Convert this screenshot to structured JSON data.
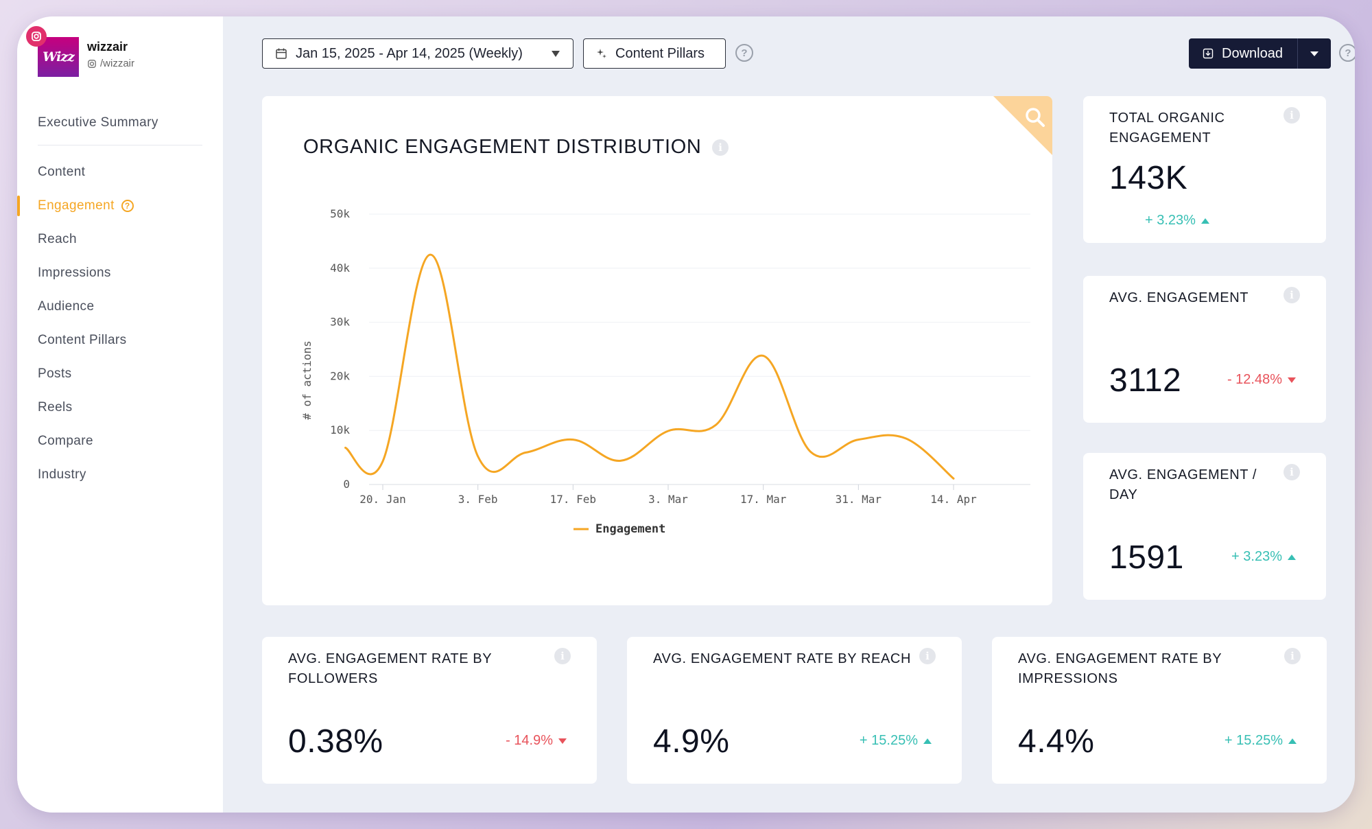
{
  "brand": {
    "logo_text": "Wizz",
    "name": "wizzair",
    "handle": "/wizzair"
  },
  "sidebar": {
    "summary": "Executive Summary",
    "items": [
      {
        "label": "Content",
        "active": false
      },
      {
        "label": "Engagement",
        "active": true
      },
      {
        "label": "Reach",
        "active": false
      },
      {
        "label": "Impressions",
        "active": false
      },
      {
        "label": "Audience",
        "active": false
      },
      {
        "label": "Content Pillars",
        "active": false
      },
      {
        "label": "Posts",
        "active": false
      },
      {
        "label": "Reels",
        "active": false
      },
      {
        "label": "Compare",
        "active": false
      },
      {
        "label": "Industry",
        "active": false
      }
    ]
  },
  "toolbar": {
    "date_range": "Jan 15, 2025 - Apr 14, 2025 (Weekly)",
    "pillars_label": "Content Pillars",
    "download_label": "Download"
  },
  "colors": {
    "accent": "#f5a623",
    "line": "#f5a623",
    "positive": "#37bfb4",
    "negative": "#e8535b",
    "dark": "#161b36"
  },
  "chart_data": {
    "type": "line",
    "title": "ORGANIC ENGAGEMENT DISTRIBUTION",
    "xlabel": "",
    "ylabel": "# of actions",
    "ylim": [
      0,
      50000
    ],
    "yticks": [
      0,
      10000,
      20000,
      30000,
      40000,
      50000
    ],
    "ytick_labels": [
      "0",
      "10k",
      "20k",
      "30k",
      "40k",
      "50k"
    ],
    "xticks": [
      "20. Jan",
      "3. Feb",
      "17. Feb",
      "3. Mar",
      "17. Mar",
      "31. Mar",
      "14. Apr"
    ],
    "legend": "bottom-center",
    "series": [
      {
        "name": "Engagement",
        "points": [
          {
            "day": -5.5,
            "value": 6800
          },
          {
            "day": 0,
            "value": 4300
          },
          {
            "day": 7,
            "value": 42500
          },
          {
            "day": 14,
            "value": 5200
          },
          {
            "day": 21,
            "value": 5900
          },
          {
            "day": 28,
            "value": 8300
          },
          {
            "day": 35,
            "value": 4400
          },
          {
            "day": 42,
            "value": 9900
          },
          {
            "day": 49,
            "value": 11000
          },
          {
            "day": 56,
            "value": 23800
          },
          {
            "day": 63,
            "value": 6000
          },
          {
            "day": 70,
            "value": 8300
          },
          {
            "day": 77,
            "value": 8500
          },
          {
            "day": 84,
            "value": 1100
          }
        ]
      }
    ]
  },
  "stats": {
    "total": {
      "title": "TOTAL ORGANIC ENGAGEMENT",
      "value": "143K",
      "change": "+ 3.23%",
      "direction": "up"
    },
    "avg": {
      "title": "AVG. ENGAGEMENT",
      "value": "3112",
      "change": "- 12.48%",
      "direction": "down"
    },
    "per_day": {
      "title": "AVG. ENGAGEMENT / DAY",
      "value": "1591",
      "change": "+ 3.23%",
      "direction": "up"
    },
    "rate_followers": {
      "title": "AVG. ENGAGEMENT RATE BY FOLLOWERS",
      "value": "0.38%",
      "change": "- 14.9%",
      "direction": "down"
    },
    "rate_reach": {
      "title": "AVG. ENGAGEMENT RATE BY REACH",
      "value": "4.9%",
      "change": "+ 15.25%",
      "direction": "up"
    },
    "rate_impressions": {
      "title": "AVG. ENGAGEMENT RATE BY IMPRESSIONS",
      "value": "4.4%",
      "change": "+ 15.25%",
      "direction": "up"
    }
  },
  "icons": {
    "calendar": "calendar-icon",
    "sparkle": "sparkle-icon",
    "download": "download-icon",
    "search": "search-icon",
    "info": "info-icon",
    "help": "help-icon",
    "instagram": "instagram-icon"
  }
}
